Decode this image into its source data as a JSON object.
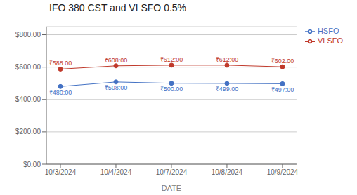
{
  "chart_data": {
    "type": "line",
    "title": "IFO 380 CST and VLSFO 0.5%",
    "xlabel": "DATE",
    "categories": [
      "10/3/2024",
      "10/4/2024",
      "10/7/2024",
      "10/8/2024",
      "10/9/2024"
    ],
    "series": [
      {
        "name": "HSFO",
        "color": "#4472c4",
        "marker": "circle",
        "values": [
          480,
          508,
          500,
          499,
          497
        ],
        "value_labels": [
          "₹480:00",
          "₹508:00",
          "₹500:00",
          "₹499:00",
          "₹497:00"
        ]
      },
      {
        "name": "VLSFO",
        "color": "#c0392b",
        "marker": "circle",
        "values": [
          588,
          608,
          612,
          612,
          602
        ],
        "value_labels": [
          "₹588:00",
          "₹608:00",
          "₹612:00",
          "₹612:00",
          "₹602:00"
        ]
      }
    ],
    "ylim": [
      0,
      850
    ],
    "yticks": [
      {
        "value": 0,
        "label": "$0.00"
      },
      {
        "value": 200,
        "label": "$200.00"
      },
      {
        "value": 400,
        "label": "$400.00"
      },
      {
        "value": 600,
        "label": "$600.00"
      },
      {
        "value": 800,
        "label": "$800.00"
      }
    ],
    "grid": true,
    "legend": "right",
    "data_labels": true
  }
}
